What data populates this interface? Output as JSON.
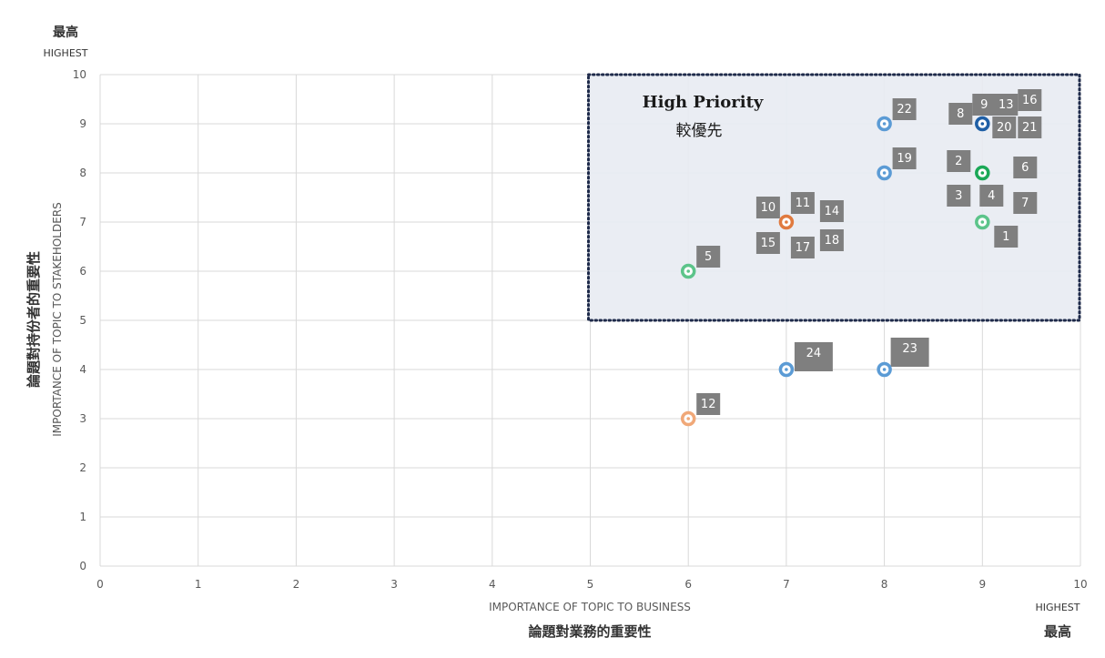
{
  "chart_data": {
    "type": "scatter",
    "title": "",
    "xlabel": "IMPORTANCE OF TOPIC TO BUSINESS",
    "xlabel_zh": "論題對業務的重要性",
    "ylabel": "IMPORTANCE OF TOPIC TO STAKEHOLDERS",
    "ylabel_zh": "論題對持份者的重要性",
    "xlim": [
      0,
      10
    ],
    "ylim": [
      0,
      10
    ],
    "x_ticks": [
      "0",
      "1",
      "2",
      "3",
      "4",
      "5",
      "6",
      "7",
      "8",
      "9",
      "10"
    ],
    "y_ticks": [
      "0",
      "1",
      "2",
      "3",
      "4",
      "5",
      "6",
      "7",
      "8",
      "9",
      "10"
    ],
    "grid": true,
    "x_highest_en": "HIGHEST",
    "x_highest_zh": "最高",
    "y_highest_en": "HIGHEST",
    "y_highest_zh": "最高",
    "region": {
      "x": [
        5,
        10
      ],
      "y": [
        5,
        10
      ],
      "label_en": "High Priority",
      "label_zh": "較優先"
    },
    "points": [
      {
        "x": 9,
        "y": 9,
        "color": "#1f5fa6",
        "labels": [
          "8",
          "9",
          "13",
          "16",
          "20",
          "21"
        ]
      },
      {
        "x": 8,
        "y": 9,
        "color": "#5b9bd5",
        "labels": [
          "22"
        ]
      },
      {
        "x": 9,
        "y": 8,
        "color": "#1ba857",
        "labels": [
          "2",
          "3",
          "4",
          "6",
          "7"
        ]
      },
      {
        "x": 8,
        "y": 8,
        "color": "#5b9bd5",
        "labels": [
          "19"
        ]
      },
      {
        "x": 9,
        "y": 7,
        "color": "#5cc48a",
        "labels": [
          "1"
        ]
      },
      {
        "x": 7,
        "y": 7,
        "color": "#e07a3f",
        "labels": [
          "10",
          "11",
          "14",
          "15",
          "17",
          "18"
        ]
      },
      {
        "x": 6,
        "y": 6,
        "color": "#5cc48a",
        "labels": [
          "5"
        ]
      },
      {
        "x": 7,
        "y": 4,
        "color": "#5b9bd5",
        "labels": [
          "24"
        ]
      },
      {
        "x": 8,
        "y": 4,
        "color": "#5b9bd5",
        "labels": [
          "23"
        ]
      },
      {
        "x": 6,
        "y": 3,
        "color": "#f0a878",
        "labels": [
          "12"
        ]
      }
    ],
    "tag_color": "#7f7f7f"
  }
}
